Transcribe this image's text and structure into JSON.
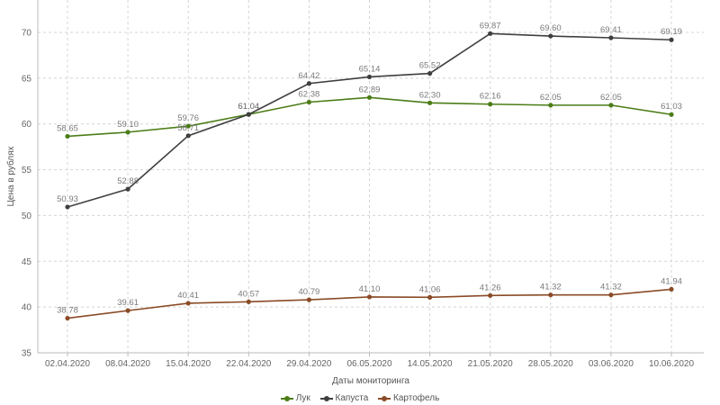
{
  "chart_data": {
    "type": "line",
    "xlabel": "Даты мониторинга",
    "ylabel": "Цена в рублях",
    "ylim": [
      35,
      72
    ],
    "yticks": [
      35,
      40,
      45,
      50,
      55,
      60,
      65,
      70
    ],
    "grid": true,
    "legend_position": "bottom",
    "categories": [
      "02.04.2020",
      "08.04.2020",
      "15.04.2020",
      "22.04.2020",
      "29.04.2020",
      "06.05.2020",
      "14.05.2020",
      "21.05.2020",
      "28.05.2020",
      "03.06.2020",
      "10.06.2020"
    ],
    "series": [
      {
        "name": "Лук",
        "color": "#4b7d17",
        "label_color": "#7a7a7a",
        "values": [
          58.65,
          59.1,
          59.76,
          61.04,
          62.38,
          62.89,
          62.3,
          62.16,
          62.05,
          62.05,
          61.03
        ],
        "labels": [
          "58.65",
          "59.10",
          "59.76",
          "61.04",
          "62.38",
          "62.89",
          "62.30",
          "62.16",
          "62.05",
          "62.05",
          "61.03"
        ]
      },
      {
        "name": "Капуста",
        "color": "#3f3f3f",
        "label_color": "#7a7a7a",
        "values": [
          50.93,
          52.88,
          58.71,
          61.04,
          64.42,
          65.14,
          65.52,
          69.87,
          69.6,
          69.41,
          69.19
        ],
        "labels": [
          "50.93",
          "52.88",
          "58.71",
          "61.04",
          "64.42",
          "65.14",
          "65.52",
          "69.87",
          "69.60",
          "69.41",
          "69.19"
        ]
      },
      {
        "name": "Картофель",
        "color": "#8a4b26",
        "label_color": "#7a7a7a",
        "values": [
          38.78,
          39.61,
          40.41,
          40.57,
          40.79,
          41.1,
          41.06,
          41.26,
          41.32,
          41.32,
          41.94
        ],
        "labels": [
          "38.78",
          "39.61",
          "40.41",
          "40.57",
          "40.79",
          "41.10",
          "41.06",
          "41.26",
          "41.32",
          "41.32",
          "41.94"
        ]
      }
    ]
  },
  "legend": [
    {
      "label": "Лук",
      "color": "#4b7d17"
    },
    {
      "label": "Капуста",
      "color": "#3f3f3f"
    },
    {
      "label": "Картофель",
      "color": "#8a4b26"
    }
  ]
}
